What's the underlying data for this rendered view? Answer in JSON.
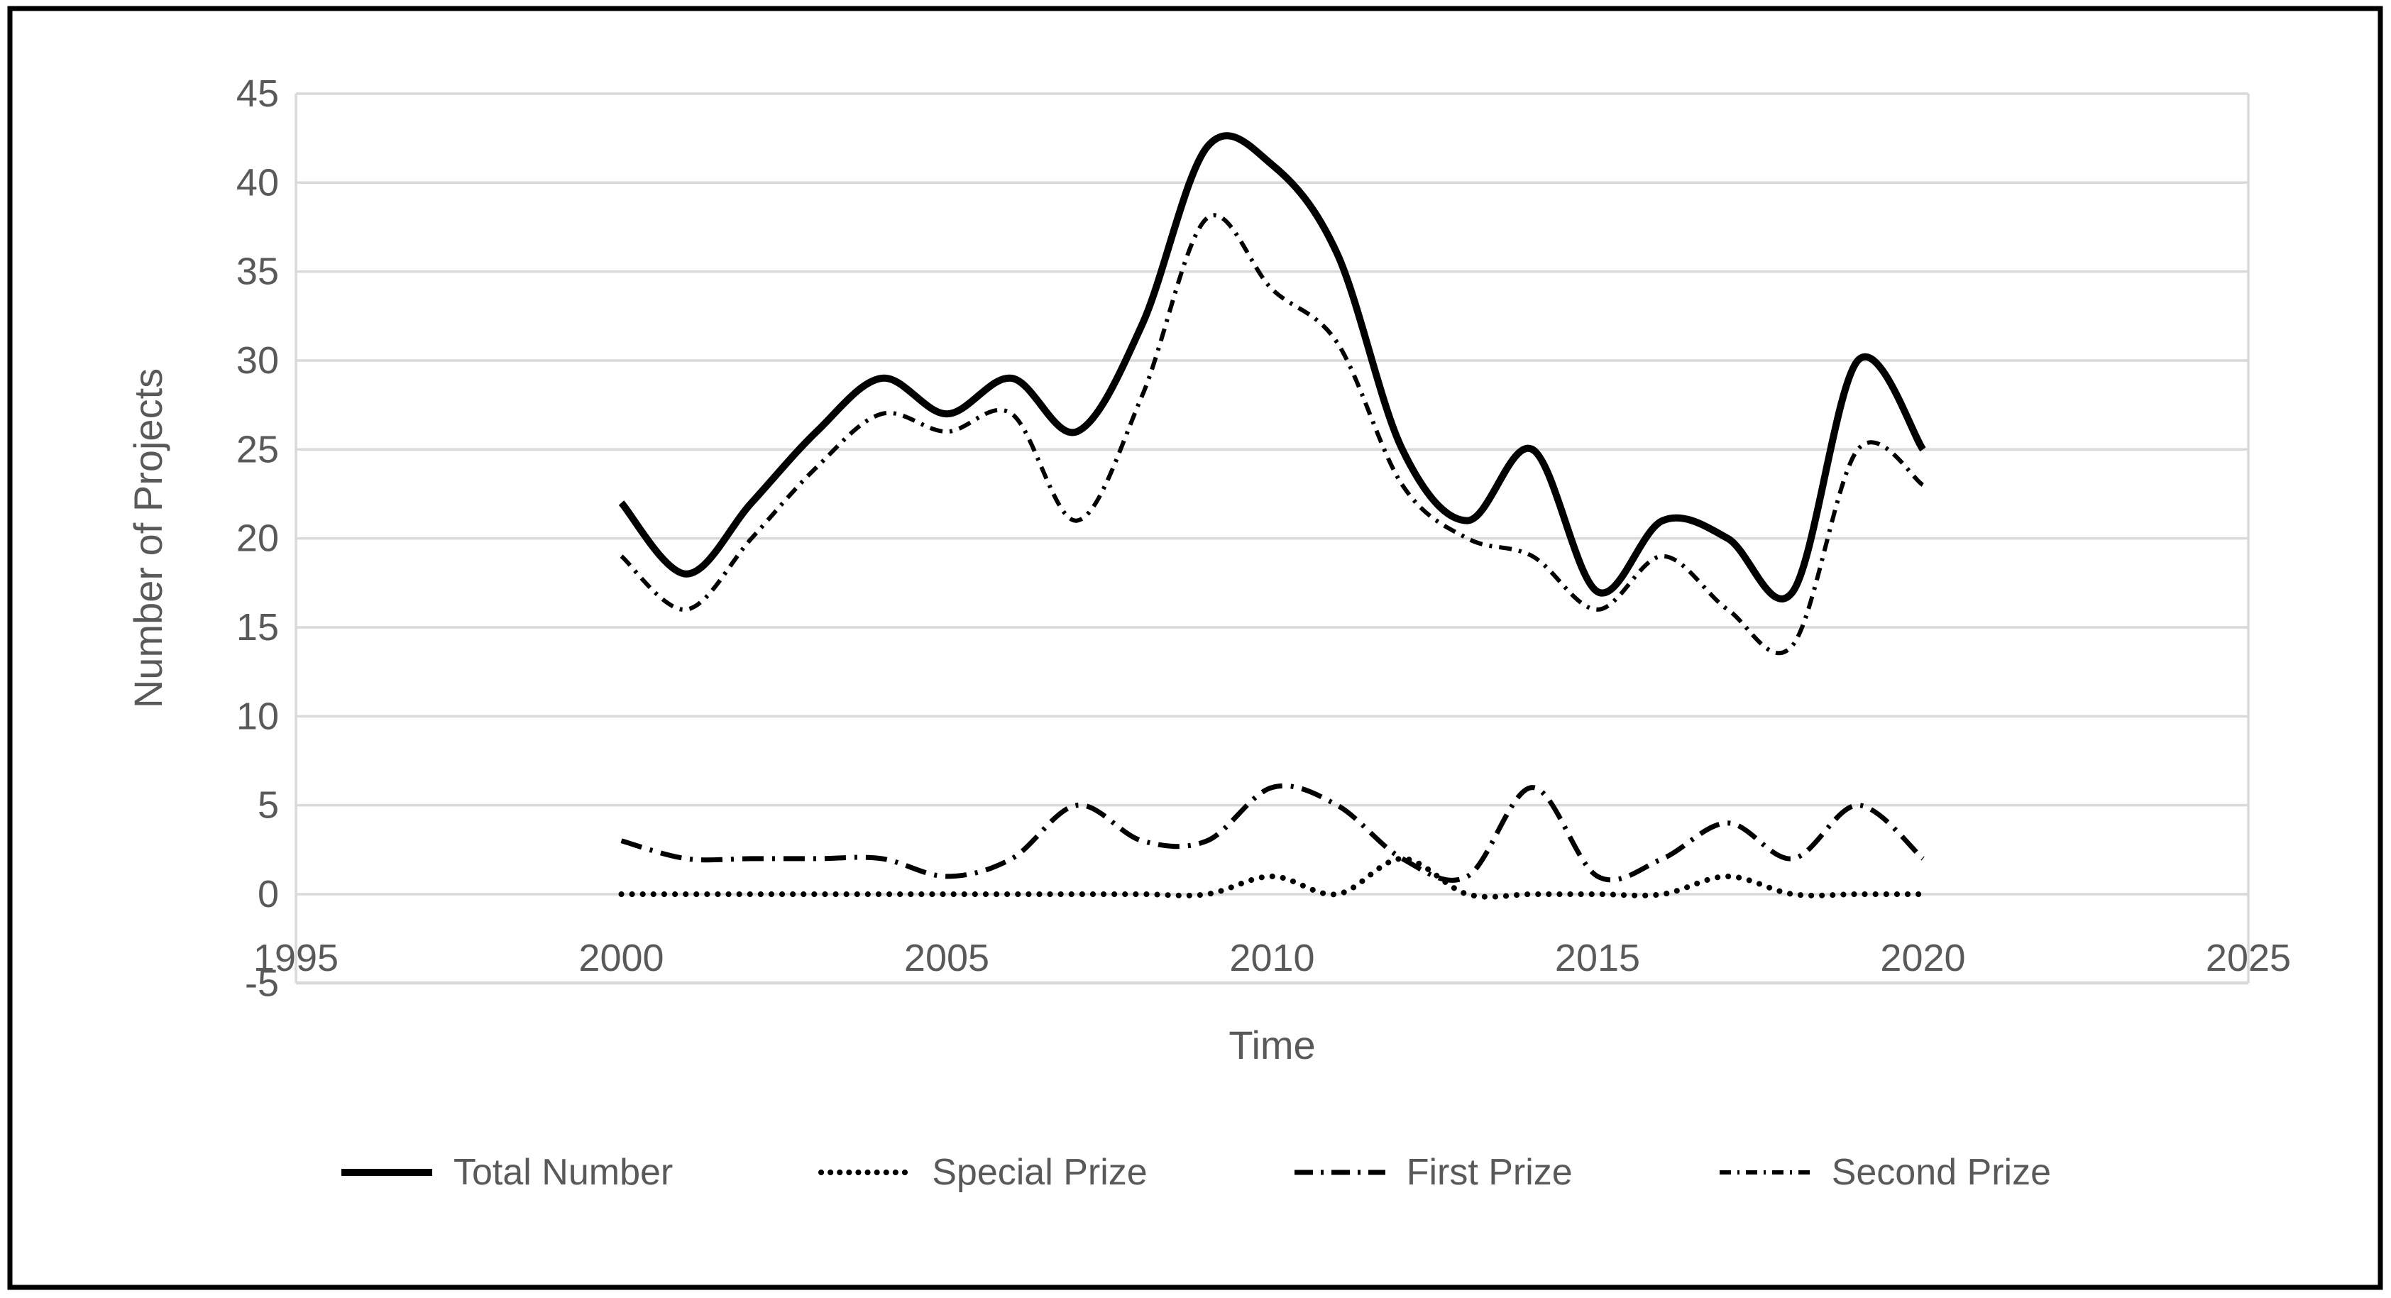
{
  "frame": {
    "border_color": "#000000",
    "background": "#ffffff"
  },
  "axes": {
    "x": {
      "title": "Time",
      "tick_labels": [
        "1995",
        "2000",
        "2005",
        "2010",
        "2015",
        "2020",
        "2025"
      ],
      "tick_values": [
        1995,
        2000,
        2005,
        2010,
        2015,
        2020,
        2025
      ],
      "range": [
        1995,
        2025
      ]
    },
    "y": {
      "title": "Number of Projects",
      "tick_labels": [
        "45",
        "40",
        "35",
        "30",
        "25",
        "20",
        "15",
        "10",
        "5",
        "0",
        "-5"
      ],
      "tick_values": [
        45,
        40,
        35,
        30,
        25,
        20,
        15,
        10,
        5,
        0,
        -5
      ],
      "range": [
        -5,
        45
      ]
    },
    "tick_color": "#595959",
    "gridline_color": "#d9d9d9"
  },
  "legend": {
    "items": [
      {
        "label": "Total Number",
        "style": "solid"
      },
      {
        "label": "Special Prize",
        "style": "dotted"
      },
      {
        "label": "First Prize",
        "style": "dashdot"
      },
      {
        "label": "Second Prize",
        "style": "dashdotdot"
      }
    ]
  },
  "chart_data": {
    "type": "line",
    "title": "",
    "xlabel": "Time",
    "ylabel": "Number of Projects",
    "xlim": [
      1995,
      2025
    ],
    "ylim": [
      -5,
      45
    ],
    "grid": "horizontal",
    "legend_position": "bottom",
    "line_color": "#000000",
    "x": [
      2000,
      2001,
      2002,
      2003,
      2004,
      2005,
      2006,
      2007,
      2008,
      2009,
      2010,
      2011,
      2012,
      2013,
      2014,
      2015,
      2016,
      2017,
      2018,
      2019,
      2020
    ],
    "series": [
      {
        "name": "Total Number",
        "values": [
          22,
          18,
          22,
          26,
          29,
          27,
          29,
          26,
          32,
          42,
          41,
          36,
          25,
          21,
          25,
          17,
          21,
          20,
          17,
          30,
          25
        ]
      },
      {
        "name": "Special Prize",
        "values": [
          0,
          0,
          0,
          0,
          0,
          0,
          0,
          0,
          0,
          0,
          1,
          0,
          2,
          0,
          0,
          0,
          0,
          1,
          0,
          0,
          0
        ]
      },
      {
        "name": "First Prize",
        "values": [
          3,
          2,
          2,
          2,
          2,
          1,
          2,
          5,
          3,
          3,
          6,
          5,
          2,
          1,
          6,
          1,
          2,
          4,
          2,
          5,
          2
        ]
      },
      {
        "name": "Second Prize",
        "values": [
          19,
          16,
          20,
          24,
          27,
          26,
          27,
          21,
          28,
          38,
          34,
          31,
          23,
          20,
          19,
          16,
          19,
          16,
          14,
          25,
          23
        ]
      }
    ]
  }
}
